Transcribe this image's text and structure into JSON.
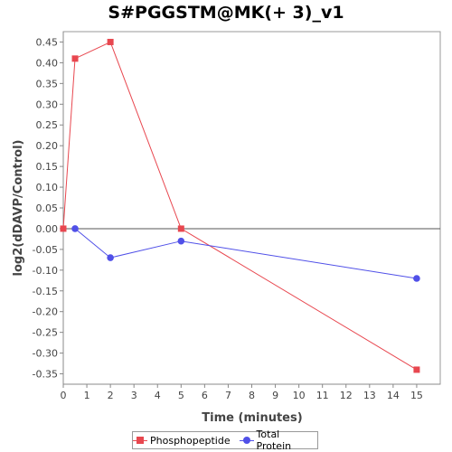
{
  "chart_data": {
    "type": "line",
    "title": "S#PGGSTM@MK(+ 3)_v1",
    "xlabel": "Time (minutes)",
    "ylabel": "log2(dDAVP/Control)",
    "xlim": [
      0,
      16
    ],
    "ylim": [
      -0.375,
      0.475
    ],
    "x_ticks": [
      0,
      1,
      2,
      3,
      4,
      5,
      6,
      7,
      8,
      9,
      10,
      11,
      12,
      13,
      14,
      15
    ],
    "y_ticks": [
      0.45,
      0.4,
      0.35,
      0.3,
      0.25,
      0.2,
      0.15,
      0.1,
      0.05,
      0.0,
      -0.05,
      -0.1,
      -0.15,
      -0.2,
      -0.25,
      -0.3,
      -0.35
    ],
    "zero_line": true,
    "grid": false,
    "legend_position": "bottom",
    "series": [
      {
        "name": "Phosphopeptide",
        "color": "#e8474f",
        "marker": "square",
        "x": [
          0,
          0.5,
          2,
          5,
          15
        ],
        "y": [
          0.0,
          0.41,
          0.45,
          0.0,
          -0.34
        ]
      },
      {
        "name": "Total Protein",
        "color": "#5050e8",
        "marker": "circle",
        "x": [
          0.5,
          2,
          5,
          15
        ],
        "y": [
          0.0,
          -0.07,
          -0.03,
          -0.12
        ]
      }
    ]
  }
}
